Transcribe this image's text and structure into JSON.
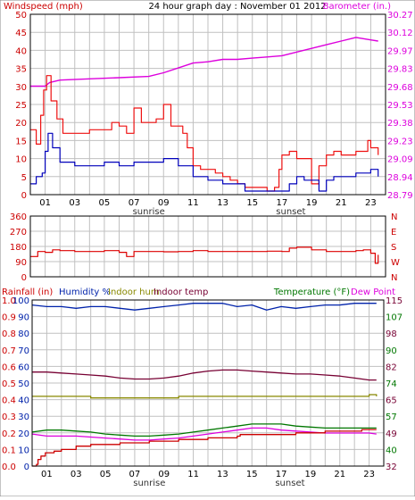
{
  "colors": {
    "wind_speed": "#cc0000",
    "wind_gust": "#ee1111",
    "wind_avg": "#0000bb",
    "barometer": "#dd00dd",
    "wind_dir": "#dd0000",
    "humidity": "#0022aa",
    "indoor_hum": "#888800",
    "indoor_temp": "#770033",
    "temperature": "#007700",
    "dew_point": "#dd00dd",
    "rain": "#cc0000",
    "grid": "#c0c0c0",
    "frame": "#000000"
  },
  "chart_data": [
    {
      "type": "line",
      "panel": "wind_barometer",
      "title": "24 hour graph day : November 01 2012",
      "left_axis_label": "Windspeed (mph)",
      "right_axis_label": "Barometer (in.)",
      "left_ylim": [
        0,
        50
      ],
      "left_ticks": [
        "0",
        "5",
        "10",
        "15",
        "20",
        "25",
        "30",
        "35",
        "40",
        "45",
        "50"
      ],
      "right_ylim": [
        28.79,
        30.27
      ],
      "right_ticks": [
        "28.79",
        "28.94",
        "29.09",
        "29.23",
        "29.38",
        "29.53",
        "29.68",
        "29.83",
        "29.97",
        "30.12",
        "30.27"
      ],
      "x_hours_range": [
        0,
        24
      ],
      "x_ticks": [
        "01",
        "03",
        "05",
        "07",
        "09",
        "11",
        "13",
        "15",
        "17",
        "19",
        "21",
        "23"
      ],
      "annotations": [
        {
          "text": "sunrise",
          "x": 8.0
        },
        {
          "text": "sunset",
          "x": 17.6
        }
      ],
      "grid": true,
      "series": [
        {
          "key": "gust",
          "x": [
            0,
            0.4,
            0.7,
            0.9,
            1.1,
            1.4,
            1.8,
            2.2,
            3,
            4,
            5,
            5.5,
            6,
            6.5,
            7,
            7.5,
            8,
            8.5,
            9,
            9.5,
            10,
            10.3,
            10.6,
            11,
            11.5,
            12,
            12.5,
            13,
            13.5,
            14,
            14.5,
            15,
            15.5,
            16,
            16.5,
            16.8,
            17,
            17.5,
            18,
            18.5,
            19,
            19.5,
            20,
            20.5,
            21,
            21.5,
            22,
            22.5,
            22.8,
            23,
            23.5
          ],
          "y": [
            18,
            14,
            22,
            29,
            33,
            26,
            21,
            17,
            17,
            18,
            18,
            20,
            19,
            17,
            24,
            20,
            20,
            21,
            25,
            19,
            19,
            17,
            13,
            8,
            7,
            7,
            6,
            5,
            4,
            3,
            2,
            2,
            2,
            1,
            2,
            7,
            11,
            12,
            10,
            10,
            3,
            8,
            11,
            12,
            11,
            11,
            12,
            12,
            15,
            13,
            11
          ]
        },
        {
          "key": "avg",
          "x": [
            0,
            0.4,
            0.8,
            1.0,
            1.2,
            1.5,
            2,
            3,
            4,
            5,
            6,
            7,
            8,
            9,
            10,
            11,
            12,
            13,
            14,
            14.5,
            15,
            15.5,
            16,
            16.5,
            17,
            17.5,
            18,
            18.5,
            19,
            19.5,
            20,
            20.5,
            21,
            21.5,
            22,
            22.5,
            23,
            23.5
          ],
          "y": [
            3,
            5,
            6,
            12,
            17,
            13,
            9,
            8,
            8,
            9,
            8,
            9,
            9,
            10,
            8,
            5,
            4,
            3,
            3,
            1,
            1,
            1,
            1,
            1,
            1,
            3,
            5,
            4,
            4,
            1,
            4,
            5,
            5,
            5,
            6,
            6,
            7,
            5
          ]
        },
        {
          "key": "barometer",
          "x": [
            0,
            1,
            1.3,
            2,
            4,
            6,
            8,
            9,
            10,
            11,
            12,
            13,
            14,
            15,
            16,
            17,
            18,
            19,
            20,
            21,
            22,
            22.5,
            23,
            23.5
          ],
          "y": [
            29.68,
            29.68,
            29.71,
            29.73,
            29.74,
            29.75,
            29.76,
            29.79,
            29.83,
            29.87,
            29.88,
            29.9,
            29.9,
            29.91,
            29.92,
            29.93,
            29.96,
            29.99,
            30.02,
            30.05,
            30.08,
            30.07,
            30.06,
            30.05
          ]
        }
      ]
    },
    {
      "type": "line",
      "panel": "wind_direction",
      "left_ylim": [
        0,
        360
      ],
      "left_ticks": [
        "0",
        "90",
        "180",
        "270",
        "360"
      ],
      "right_labels": [
        "N",
        "W",
        "S",
        "E",
        "N"
      ],
      "x_hours_range": [
        0,
        24
      ],
      "series": [
        {
          "key": "direction",
          "x": [
            0,
            0.5,
            1,
            1.5,
            2,
            3,
            4,
            5,
            6,
            6.5,
            7,
            8,
            9,
            10,
            11,
            12,
            13,
            14,
            15,
            16,
            17,
            17.5,
            18,
            19,
            20,
            21,
            22,
            22.5,
            23,
            23.3,
            23.5
          ],
          "y": [
            120,
            150,
            145,
            160,
            155,
            150,
            150,
            155,
            145,
            120,
            150,
            150,
            148,
            150,
            155,
            150,
            150,
            150,
            150,
            152,
            150,
            170,
            175,
            160,
            150,
            150,
            155,
            160,
            140,
            80,
            130
          ]
        }
      ]
    },
    {
      "type": "line",
      "panel": "temp_hum_rain",
      "labels": [
        "Rainfall (in)",
        "Humidity %",
        "Indoor hum",
        "Indoor temp",
        "Temperature (°F)",
        "Dew Point"
      ],
      "rain_ticks": [
        "0.0",
        "0.1",
        "0.2",
        "0.3",
        "0.4",
        "0.5",
        "0.6",
        "0.7",
        "0.8",
        "0.9",
        "1.0"
      ],
      "hum_ticks": [
        "0",
        "10",
        "20",
        "30",
        "40",
        "50",
        "60",
        "70",
        "80",
        "90",
        "100"
      ],
      "rain_ylim": [
        0,
        1.0
      ],
      "hum_ylim": [
        0,
        100
      ],
      "temp_ticks": [
        "32",
        "40",
        "49",
        "57",
        "65",
        "74",
        "82",
        "90",
        "98",
        "107",
        "115"
      ],
      "temp_ylim": [
        32,
        115
      ],
      "x_hours_range": [
        0,
        24
      ],
      "x_ticks": [
        "01",
        "03",
        "05",
        "07",
        "09",
        "11",
        "13",
        "15",
        "17",
        "19",
        "21",
        "23"
      ],
      "annotations": [
        {
          "text": "sunrise",
          "x": 8.0
        },
        {
          "text": "sunset",
          "x": 17.6
        }
      ],
      "series": [
        {
          "key": "humidity",
          "x": [
            0,
            1,
            2,
            3,
            4,
            5,
            6,
            7,
            8,
            9,
            10,
            11,
            12,
            13,
            14,
            15,
            16,
            17,
            18,
            19,
            20,
            21,
            22,
            23,
            23.5
          ],
          "y": [
            97,
            96,
            96,
            95,
            96,
            96,
            95,
            94,
            95,
            96,
            97,
            98,
            98,
            98,
            96,
            97,
            94,
            96,
            95,
            96,
            97,
            97,
            98,
            98,
            98
          ]
        },
        {
          "key": "indoor_hum",
          "x": [
            0,
            2,
            4,
            6,
            8,
            10,
            12,
            14,
            16,
            18,
            20,
            22,
            23,
            23.5
          ],
          "y": [
            42,
            42,
            41,
            41,
            41,
            42,
            42,
            42,
            42,
            42,
            42,
            42,
            43,
            42
          ]
        },
        {
          "key": "indoor_temp",
          "x": [
            0,
            1,
            2,
            3,
            4,
            5,
            6,
            7,
            8,
            9,
            10,
            11,
            12,
            13,
            14,
            15,
            16,
            17,
            18,
            19,
            20,
            21,
            22,
            23,
            23.5
          ],
          "y": [
            79,
            79,
            78.5,
            78,
            77.5,
            77,
            76,
            75.5,
            75.5,
            76,
            77,
            78.5,
            79.5,
            80,
            80,
            79.5,
            79,
            78.5,
            78,
            78,
            77.5,
            77,
            76,
            75,
            75
          ]
        },
        {
          "key": "temperature",
          "x": [
            0,
            1,
            2,
            3,
            4,
            5,
            6,
            7,
            8,
            9,
            10,
            11,
            12,
            13,
            14,
            15,
            16,
            17,
            18,
            19,
            20,
            21,
            22,
            23,
            23.5
          ],
          "y": [
            49,
            50,
            50,
            49.5,
            49,
            48,
            47.5,
            47,
            47,
            47.5,
            48,
            49,
            50,
            51,
            52,
            53,
            53,
            53,
            52,
            51.5,
            51,
            51,
            51,
            51,
            51
          ]
        },
        {
          "key": "dew_point",
          "x": [
            0,
            1,
            2,
            3,
            4,
            5,
            6,
            7,
            8,
            9,
            10,
            11,
            12,
            13,
            14,
            15,
            16,
            17,
            18,
            19,
            20,
            21,
            22,
            23,
            23.5
          ],
          "y": [
            48,
            47,
            47,
            47,
            46.5,
            46,
            45.5,
            45,
            45,
            45.5,
            46,
            47,
            48,
            49,
            50,
            51,
            51,
            50,
            49.5,
            49,
            48.5,
            48.5,
            48.5,
            48.5,
            48
          ]
        },
        {
          "key": "rain",
          "x": [
            0,
            0.3,
            0.4,
            0.6,
            0.9,
            1.5,
            2,
            3,
            4,
            6,
            8,
            10,
            12,
            14,
            14.2,
            16,
            18,
            20,
            22,
            22.5,
            23.5
          ],
          "y": [
            0.0,
            0.01,
            0.04,
            0.06,
            0.08,
            0.09,
            0.1,
            0.12,
            0.13,
            0.14,
            0.15,
            0.16,
            0.17,
            0.18,
            0.19,
            0.19,
            0.2,
            0.21,
            0.21,
            0.22,
            0.22
          ]
        }
      ]
    }
  ]
}
